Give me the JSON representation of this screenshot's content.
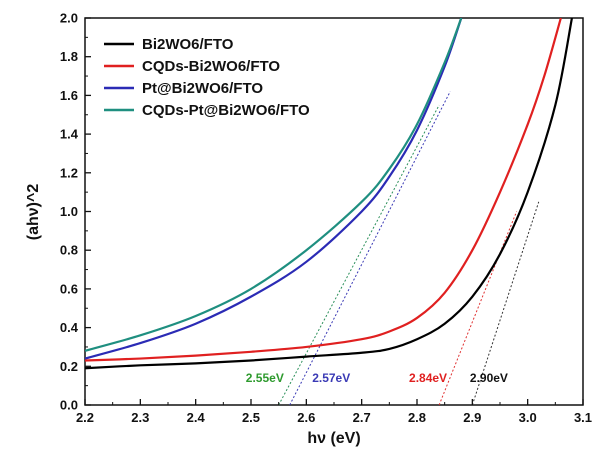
{
  "chart_data": {
    "type": "line",
    "xlabel": "hν (eV)",
    "ylabel": "(ahν)^2",
    "xlim": [
      2.2,
      3.1
    ],
    "ylim": [
      0.0,
      2.0
    ],
    "xticks": [
      2.2,
      2.3,
      2.4,
      2.5,
      2.6,
      2.7,
      2.8,
      2.9,
      3.0,
      3.1
    ],
    "yticks": [
      0.0,
      0.2,
      0.4,
      0.6,
      0.8,
      1.0,
      1.2,
      1.4,
      1.6,
      1.8,
      2.0
    ],
    "x_tick_labels": [
      "2.2",
      "2.3",
      "2.4",
      "2.5",
      "2.6",
      "2.7",
      "2.8",
      "2.9",
      "3.0",
      "3.1"
    ],
    "y_tick_labels": [
      "0.0",
      "0.2",
      "0.4",
      "0.6",
      "0.8",
      "1.0",
      "1.2",
      "1.4",
      "1.6",
      "1.8",
      "2.0"
    ],
    "legend_position": "top-left",
    "series": [
      {
        "name": "Bi2WO6/FTO",
        "color": "#000000",
        "x": [
          2.2,
          2.3,
          2.4,
          2.5,
          2.6,
          2.7,
          2.75,
          2.8,
          2.85,
          2.9,
          2.95,
          3.0,
          3.05,
          3.08
        ],
        "y": [
          0.19,
          0.205,
          0.215,
          0.23,
          0.25,
          0.27,
          0.29,
          0.34,
          0.42,
          0.56,
          0.78,
          1.1,
          1.55,
          2.0
        ]
      },
      {
        "name": "CQDs-Bi2WO6/FTO",
        "color": "#e02020",
        "x": [
          2.2,
          2.3,
          2.4,
          2.5,
          2.6,
          2.7,
          2.75,
          2.8,
          2.85,
          2.9,
          2.95,
          3.0,
          3.03,
          3.06
        ],
        "y": [
          0.23,
          0.24,
          0.255,
          0.275,
          0.3,
          0.34,
          0.38,
          0.45,
          0.58,
          0.8,
          1.1,
          1.45,
          1.7,
          2.0
        ]
      },
      {
        "name": "Pt@Bi2WO6/FTO",
        "color": "#2b2bb5",
        "x": [
          2.2,
          2.3,
          2.4,
          2.5,
          2.6,
          2.7,
          2.75,
          2.8,
          2.85,
          2.88
        ],
        "y": [
          0.24,
          0.32,
          0.42,
          0.56,
          0.74,
          1.0,
          1.18,
          1.42,
          1.75,
          2.0
        ]
      },
      {
        "name": "CQDs-Pt@Bi2WO6/FTO",
        "color": "#1f8f80",
        "x": [
          2.2,
          2.3,
          2.4,
          2.5,
          2.6,
          2.7,
          2.75,
          2.8,
          2.85,
          2.88
        ],
        "y": [
          0.28,
          0.36,
          0.46,
          0.6,
          0.8,
          1.05,
          1.22,
          1.45,
          1.77,
          2.0
        ]
      }
    ],
    "fit_lines": [
      {
        "color": "#2b8f5a",
        "x": [
          2.55,
          2.84
        ],
        "y": [
          0.0,
          1.55
        ]
      },
      {
        "color": "#3a3ab5",
        "x": [
          2.57,
          2.86
        ],
        "y": [
          0.0,
          1.62
        ]
      },
      {
        "color": "#e03030",
        "x": [
          2.84,
          2.98
        ],
        "y": [
          0.0,
          1.0
        ]
      },
      {
        "color": "#333333",
        "x": [
          2.9,
          3.02
        ],
        "y": [
          0.0,
          1.05
        ]
      }
    ],
    "annotations": [
      {
        "text": "2.55eV",
        "color": "#2e9a2e",
        "x": 2.525,
        "y": 0.12
      },
      {
        "text": "2.57eV",
        "color": "#3a3ab5",
        "x": 2.645,
        "y": 0.12
      },
      {
        "text": "2.84eV",
        "color": "#e02020",
        "x": 2.82,
        "y": 0.12
      },
      {
        "text": "2.90eV",
        "color": "#111111",
        "x": 2.93,
        "y": 0.12
      }
    ]
  }
}
